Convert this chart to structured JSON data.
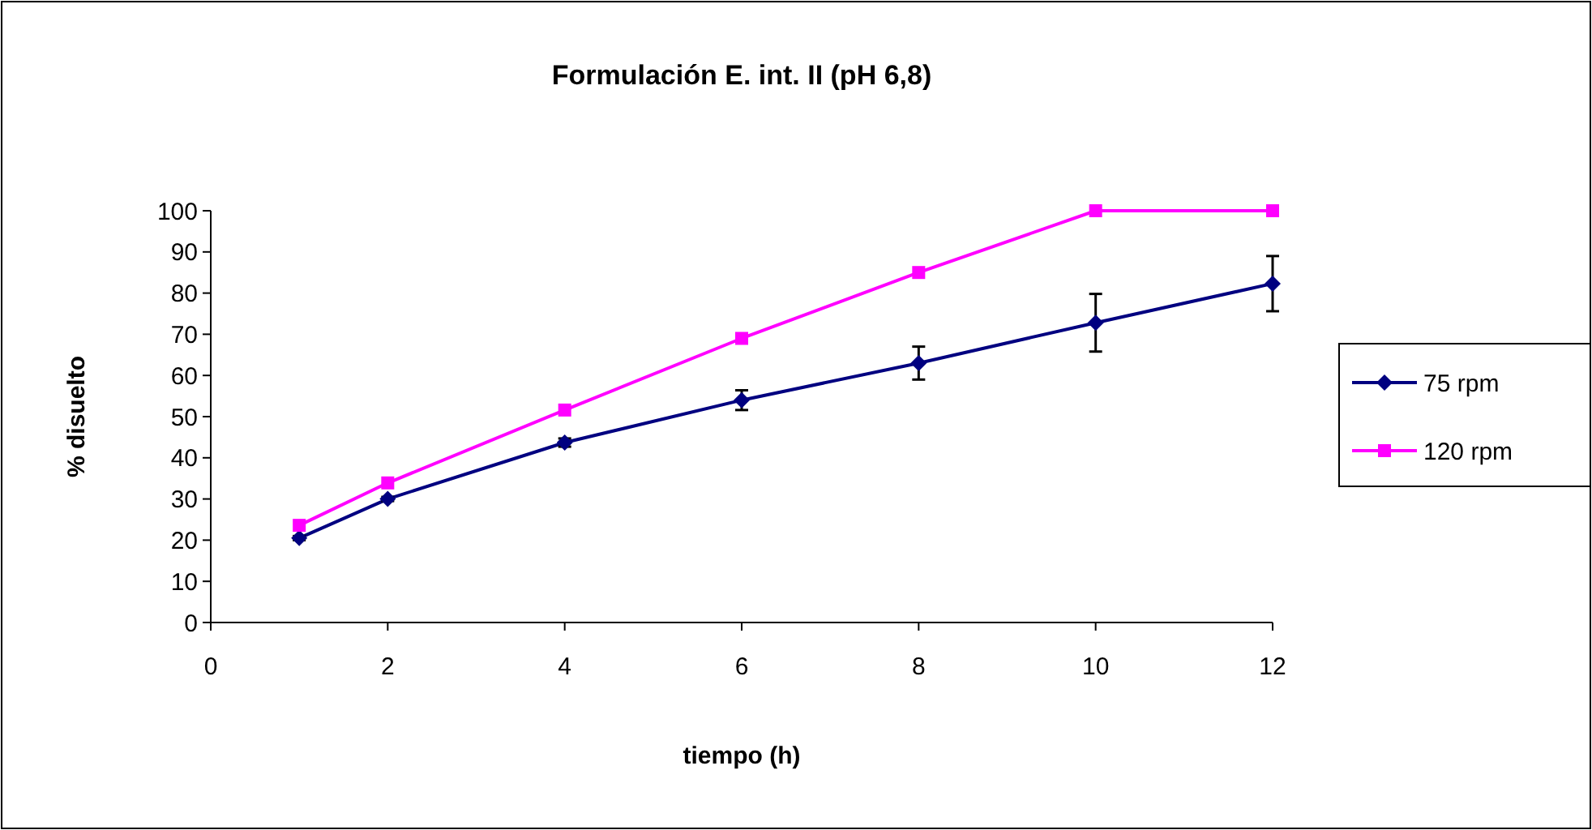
{
  "chart_data": {
    "type": "line",
    "title": "Formulación E. int. II (pH 6,8)",
    "xlabel": "tiempo (h)",
    "ylabel": "% disuelto",
    "x": [
      1,
      2,
      4,
      6,
      8,
      10,
      12
    ],
    "series": [
      {
        "name": "75 rpm",
        "color": "#000080",
        "marker": "diamond",
        "values": [
          20.5,
          30,
          43.7,
          54,
          63,
          72.8,
          82.3
        ],
        "errors": [
          0.5,
          0.5,
          1,
          2.4,
          4,
          7,
          6.7
        ]
      },
      {
        "name": "120 rpm",
        "color": "#ff00ff",
        "marker": "square",
        "values": [
          23.6,
          33.9,
          51.6,
          69,
          85,
          100,
          100
        ]
      }
    ],
    "xlim": [
      0,
      12
    ],
    "xticks": [
      0,
      2,
      4,
      6,
      8,
      10,
      12
    ],
    "ylim": [
      0,
      100
    ],
    "yticks": [
      0,
      10,
      20,
      30,
      40,
      50,
      60,
      70,
      80,
      90,
      100
    ],
    "grid": false,
    "legend": "right",
    "line_style": "solid"
  }
}
